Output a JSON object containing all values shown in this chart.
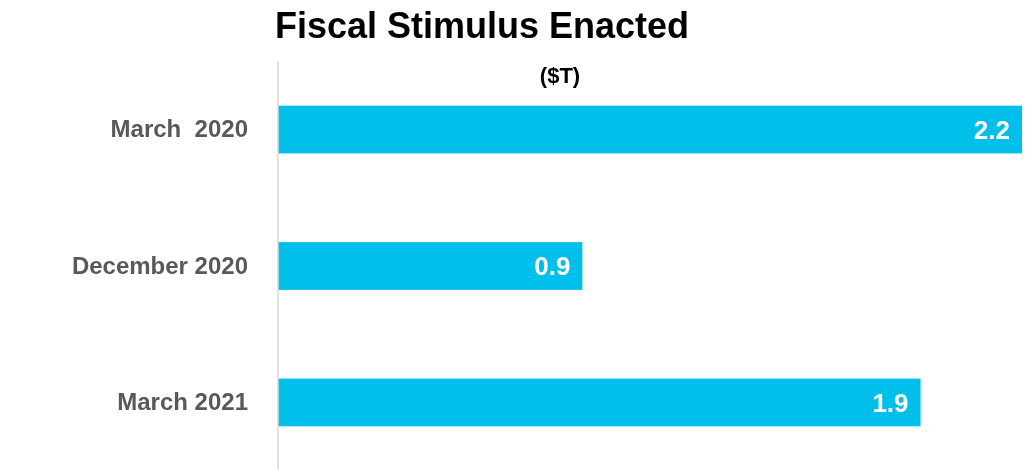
{
  "chart_data": {
    "type": "bar",
    "orientation": "horizontal",
    "title": "Fiscal Stimulus Enacted",
    "subtitle": "($T)",
    "categories": [
      "March  2020",
      "December 2020",
      "March 2021"
    ],
    "values": [
      2.2,
      0.9,
      1.9
    ],
    "color": "#00c0eb",
    "xlim": [
      0,
      2.2
    ],
    "data_labels": true,
    "tick_labels": "y"
  }
}
